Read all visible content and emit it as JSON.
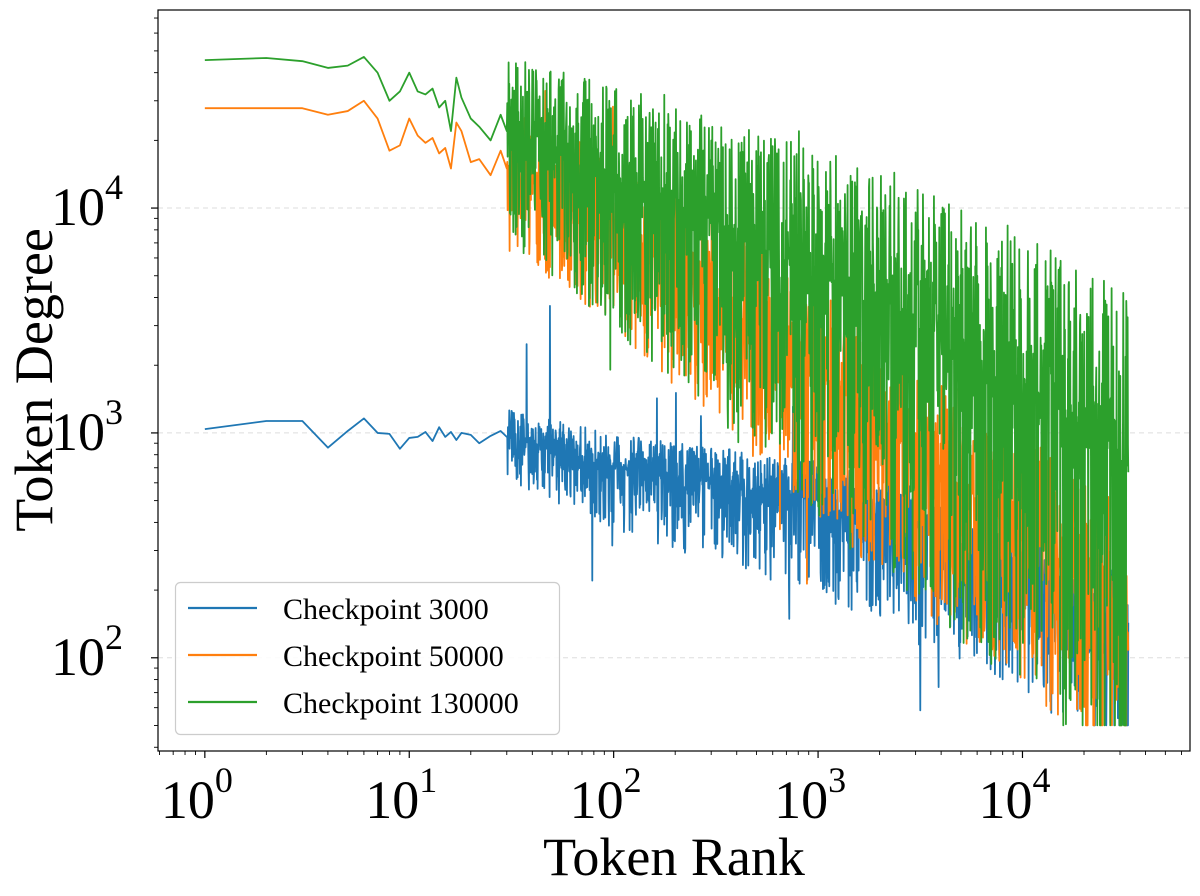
{
  "chart_data": {
    "type": "line",
    "title": "",
    "xlabel": "Token Rank",
    "ylabel": "Token Degree",
    "xscale": "log",
    "yscale": "log",
    "xlim": [
      0.59,
      66000
    ],
    "ylim": [
      38.5,
      76000
    ],
    "x_ticks": [
      {
        "value": 1,
        "base": "10",
        "exp": "0"
      },
      {
        "value": 10,
        "base": "10",
        "exp": "1"
      },
      {
        "value": 100,
        "base": "10",
        "exp": "2"
      },
      {
        "value": 1000,
        "base": "10",
        "exp": "3"
      },
      {
        "value": 10000,
        "base": "10",
        "exp": "4"
      }
    ],
    "y_ticks": [
      {
        "value": 100,
        "base": "10",
        "exp": "2"
      },
      {
        "value": 1000,
        "base": "10",
        "exp": "3"
      },
      {
        "value": 10000,
        "base": "10",
        "exp": "4"
      }
    ],
    "grid": "horizontal-dashed",
    "legend_position": "lower-left",
    "max_rank": 33000,
    "series": [
      {
        "name": "Checkpoint 3000",
        "color": "#1f77b4",
        "start_points": [
          [
            1,
            1040
          ],
          [
            2,
            1130
          ],
          [
            3,
            1130
          ],
          [
            4,
            860
          ],
          [
            5,
            1020
          ],
          [
            6,
            1160
          ],
          [
            7,
            1000
          ],
          [
            8,
            990
          ],
          [
            9,
            850
          ],
          [
            10,
            950
          ],
          [
            11,
            960
          ],
          [
            12,
            1010
          ],
          [
            13,
            920
          ],
          [
            14,
            1060
          ],
          [
            15,
            960
          ],
          [
            16,
            1010
          ],
          [
            17,
            930
          ],
          [
            18,
            1000
          ],
          [
            20,
            980
          ],
          [
            22,
            900
          ],
          [
            25,
            970
          ],
          [
            28,
            1020
          ],
          [
            30,
            960
          ]
        ],
        "trend": [
          [
            30,
            960
          ],
          [
            100,
            700
          ],
          [
            300,
            600
          ],
          [
            1000,
            500
          ],
          [
            3000,
            380
          ],
          [
            10000,
            250
          ],
          [
            33000,
            120
          ]
        ],
        "noise_up": [
          [
            30,
            0.06
          ],
          [
            1000,
            0.08
          ],
          [
            33000,
            0.12
          ]
        ],
        "noise_down": [
          [
            30,
            0.08
          ],
          [
            1000,
            0.18
          ],
          [
            33000,
            0.25
          ]
        ]
      },
      {
        "name": "Checkpoint 50000",
        "color": "#ff7f0e",
        "start_points": [
          [
            1,
            27800
          ],
          [
            2,
            27800
          ],
          [
            3,
            27800
          ],
          [
            4,
            26000
          ],
          [
            5,
            27000
          ],
          [
            6,
            30000
          ],
          [
            7,
            25000
          ],
          [
            8,
            18000
          ],
          [
            9,
            19000
          ],
          [
            10,
            25000
          ],
          [
            11,
            21000
          ],
          [
            12,
            19500
          ],
          [
            13,
            20500
          ],
          [
            14,
            17500
          ],
          [
            15,
            18500
          ],
          [
            16,
            15000
          ],
          [
            17,
            24000
          ],
          [
            18,
            22000
          ],
          [
            20,
            16000
          ],
          [
            22,
            16500
          ],
          [
            25,
            14000
          ],
          [
            28,
            18000
          ],
          [
            30,
            15000
          ]
        ],
        "trend": [
          [
            30,
            15000
          ],
          [
            100,
            8500
          ],
          [
            300,
            4200
          ],
          [
            1000,
            2000
          ],
          [
            3000,
            800
          ],
          [
            10000,
            380
          ],
          [
            33000,
            150
          ]
        ],
        "noise_up": [
          [
            30,
            0.12
          ],
          [
            1000,
            0.18
          ],
          [
            33000,
            0.22
          ]
        ],
        "noise_down": [
          [
            30,
            0.15
          ],
          [
            1000,
            0.28
          ],
          [
            33000,
            0.3
          ]
        ]
      },
      {
        "name": "Checkpoint 130000",
        "color": "#2ca02c",
        "start_points": [
          [
            1,
            45500
          ],
          [
            2,
            46500
          ],
          [
            3,
            45000
          ],
          [
            4,
            42000
          ],
          [
            5,
            43000
          ],
          [
            6,
            47000
          ],
          [
            7,
            40000
          ],
          [
            8,
            30000
          ],
          [
            9,
            33000
          ],
          [
            10,
            40000
          ],
          [
            11,
            33000
          ],
          [
            12,
            32000
          ],
          [
            13,
            34000
          ],
          [
            14,
            28000
          ],
          [
            15,
            30000
          ],
          [
            16,
            22000
          ],
          [
            17,
            38000
          ],
          [
            18,
            31000
          ],
          [
            20,
            25000
          ],
          [
            22,
            23000
          ],
          [
            25,
            20000
          ],
          [
            28,
            26000
          ],
          [
            30,
            22000
          ]
        ],
        "trend": [
          [
            30,
            22000
          ],
          [
            100,
            14000
          ],
          [
            300,
            8500
          ],
          [
            1000,
            5200
          ],
          [
            3000,
            3000
          ],
          [
            10000,
            1700
          ],
          [
            33000,
            700
          ]
        ],
        "noise_up": [
          [
            30,
            0.15
          ],
          [
            1000,
            0.25
          ],
          [
            33000,
            0.35
          ]
        ],
        "noise_down": [
          [
            30,
            0.2
          ],
          [
            1000,
            0.45
          ],
          [
            33000,
            0.65
          ]
        ]
      }
    ]
  }
}
